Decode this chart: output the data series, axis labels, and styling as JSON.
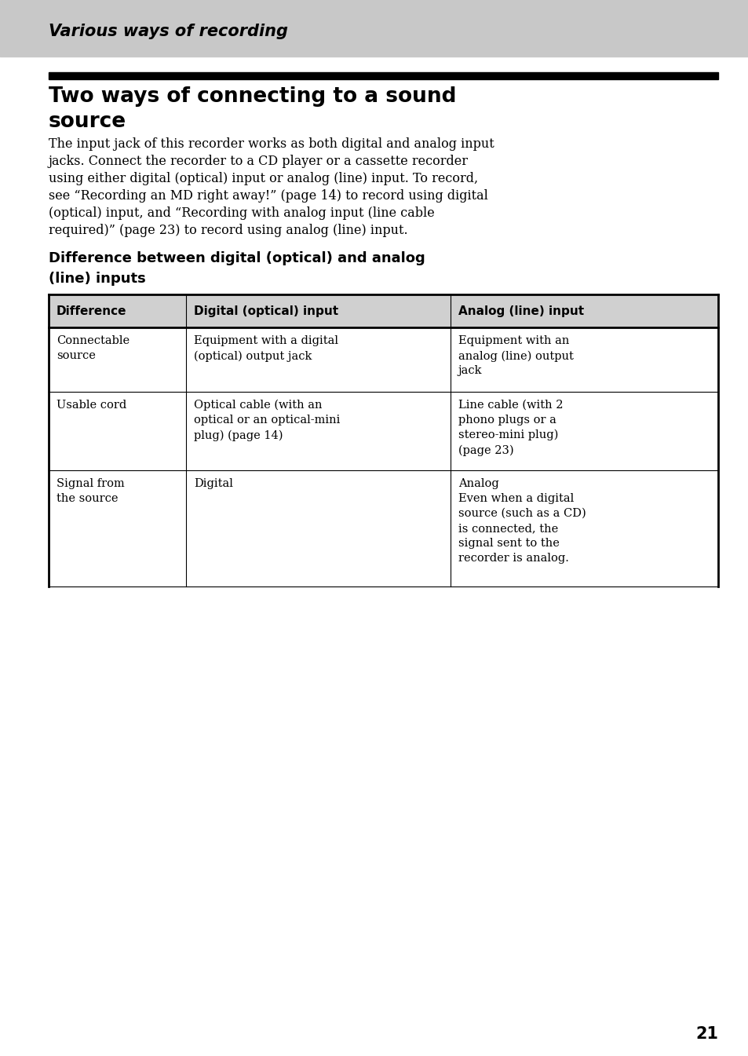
{
  "page_bg": "#ffffff",
  "header_bg": "#c8c8c8",
  "header_text": "Various ways of recording",
  "header_text_color": "#000000",
  "black_bar_color": "#000000",
  "section_title_line1": "Two ways of connecting to a sound",
  "section_title_line2": "source",
  "body_text_lines": [
    "The input jack of this recorder works as both digital and analog input",
    "jacks. Connect the recorder to a CD player or a cassette recorder",
    "using either digital (optical) input or analog (line) input. To record,",
    "see “Recording an MD right away!” (page 14) to record using digital",
    "(optical) input, and “Recording with analog input (line cable",
    "required)” (page 23) to record using analog (line) input."
  ],
  "table_subtitle_line1": "Difference between digital (optical) and analog",
  "table_subtitle_line2": "(line) inputs",
  "table_header": [
    "Difference",
    "Digital (optical) input",
    "Analog (line) input"
  ],
  "table_rows": [
    [
      "Connectable\nsource",
      "Equipment with a digital\n(optical) output jack",
      "Equipment with an\nanalog (line) output\njack"
    ],
    [
      "Usable cord",
      "Optical cable (with an\noptical or an optical-mini\nplug) (page 14)",
      "Line cable (with 2\nphono plugs or a\nstereo-mini plug)\n(page 23)"
    ],
    [
      "Signal from\nthe source",
      "Digital",
      "Analog\nEven when a digital\nsource (such as a CD)\nis connected, the\nsignal sent to the\nrecorder is analog."
    ]
  ],
  "page_number": "21",
  "header_bg_hex": "#c8c8c8",
  "table_header_bg": "#d0d0d0"
}
